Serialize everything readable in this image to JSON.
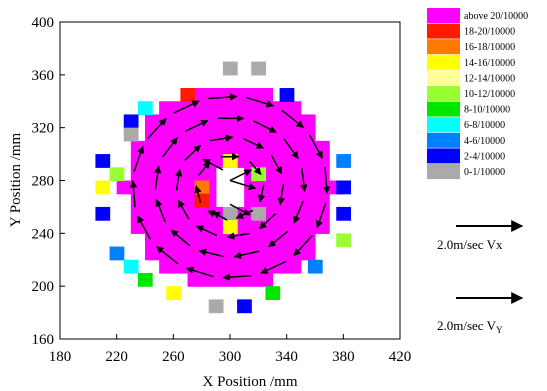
{
  "chart_data": {
    "type": "heatmap",
    "title": "",
    "xlabel": "X Position /mm",
    "ylabel": "Y Position /mm",
    "xlim": [
      180,
      420
    ],
    "ylim": [
      160,
      400
    ],
    "x_ticks": [
      "180",
      "220",
      "260",
      "300",
      "340",
      "380",
      "420"
    ],
    "y_ticks": [
      "160",
      "200",
      "240",
      "280",
      "320",
      "360",
      "400"
    ],
    "grid": false,
    "legend_position": "right",
    "legend": [
      {
        "label": "above 20/10000",
        "color": "#ff00ff"
      },
      {
        "label": "18-20/10000",
        "color": "#ff1a00"
      },
      {
        "label": "16-18/10000",
        "color": "#ff7a00"
      },
      {
        "label": "14-16/10000",
        "color": "#ffff00"
      },
      {
        "label": "12-14/10000",
        "color": "#ffff99"
      },
      {
        "label": "10-12/10000",
        "color": "#99ff33"
      },
      {
        "label": "8-10/10000",
        "color": "#00e600"
      },
      {
        "label": "6-8/10000",
        "color": "#00ffff"
      },
      {
        "label": "4-6/10000",
        "color": "#0080ff"
      },
      {
        "label": "2-4/10000",
        "color": "#0000ff"
      },
      {
        "label": "0-1/10000",
        "color": "#aaaaaa"
      }
    ],
    "vector_scale": [
      {
        "label": "2.0m/sec Vx",
        "speed_m_per_s": 2.0
      },
      {
        "label": "2.0m/sec V",
        "subscript": "Y",
        "speed_m_per_s": 2.0
      }
    ],
    "cell_size_mm": 10,
    "field": {
      "center": [
        300,
        275
      ],
      "inner_radius_mm": 15,
      "outer_radius_mm": 75,
      "fill_color": "#ff00ff",
      "flow": "clockwise swirl"
    },
    "colored_cells": [
      {
        "x": 300,
        "y": 365,
        "color": "#aaaaaa"
      },
      {
        "x": 320,
        "y": 365,
        "color": "#aaaaaa"
      },
      {
        "x": 270,
        "y": 345,
        "color": "#ff1a00"
      },
      {
        "x": 340,
        "y": 345,
        "color": "#0000ff"
      },
      {
        "x": 240,
        "y": 335,
        "color": "#00ffff"
      },
      {
        "x": 230,
        "y": 325,
        "color": "#0000ff"
      },
      {
        "x": 230,
        "y": 315,
        "color": "#aaaaaa"
      },
      {
        "x": 210,
        "y": 295,
        "color": "#0000ff"
      },
      {
        "x": 220,
        "y": 285,
        "color": "#99ff33"
      },
      {
        "x": 210,
        "y": 275,
        "color": "#ffff00"
      },
      {
        "x": 210,
        "y": 255,
        "color": "#0000ff"
      },
      {
        "x": 380,
        "y": 295,
        "color": "#0080ff"
      },
      {
        "x": 380,
        "y": 275,
        "color": "#0000ff"
      },
      {
        "x": 380,
        "y": 255,
        "color": "#0000ff"
      },
      {
        "x": 380,
        "y": 235,
        "color": "#99ff33"
      },
      {
        "x": 220,
        "y": 225,
        "color": "#0080ff"
      },
      {
        "x": 230,
        "y": 215,
        "color": "#00ffff"
      },
      {
        "x": 240,
        "y": 205,
        "color": "#00e600"
      },
      {
        "x": 360,
        "y": 215,
        "color": "#0080ff"
      },
      {
        "x": 330,
        "y": 195,
        "color": "#00e600"
      },
      {
        "x": 260,
        "y": 195,
        "color": "#ffff00"
      },
      {
        "x": 290,
        "y": 185,
        "color": "#aaaaaa"
      },
      {
        "x": 310,
        "y": 185,
        "color": "#0000ff"
      },
      {
        "x": 300,
        "y": 295,
        "color": "#ffff00"
      },
      {
        "x": 320,
        "y": 285,
        "color": "#99ff33"
      },
      {
        "x": 280,
        "y": 275,
        "color": "#ff7a00"
      },
      {
        "x": 280,
        "y": 265,
        "color": "#ff1a00"
      },
      {
        "x": 300,
        "y": 255,
        "color": "#aaaaaa"
      },
      {
        "x": 320,
        "y": 255,
        "color": "#aaaaaa"
      },
      {
        "x": 300,
        "y": 245,
        "color": "#ffff00"
      }
    ],
    "vectors_rings": [
      {
        "radius_mm": 68,
        "count": 16,
        "length_mm": 20
      },
      {
        "radius_mm": 52,
        "count": 13,
        "length_mm": 18
      },
      {
        "radius_mm": 37,
        "count": 10,
        "length_mm": 16
      },
      {
        "radius_mm": 23,
        "count": 7,
        "length_mm": 13
      }
    ],
    "inner_vectors": [
      {
        "x": 300,
        "y": 280,
        "dx": 18,
        "dy": -6
      },
      {
        "x": 300,
        "y": 280,
        "dx": 15,
        "dy": 8
      },
      {
        "x": 295,
        "y": 288,
        "dx": -14,
        "dy": 8
      },
      {
        "x": 300,
        "y": 262,
        "dx": 14,
        "dy": -8
      },
      {
        "x": 298,
        "y": 250,
        "dx": -10,
        "dy": 6
      }
    ]
  }
}
